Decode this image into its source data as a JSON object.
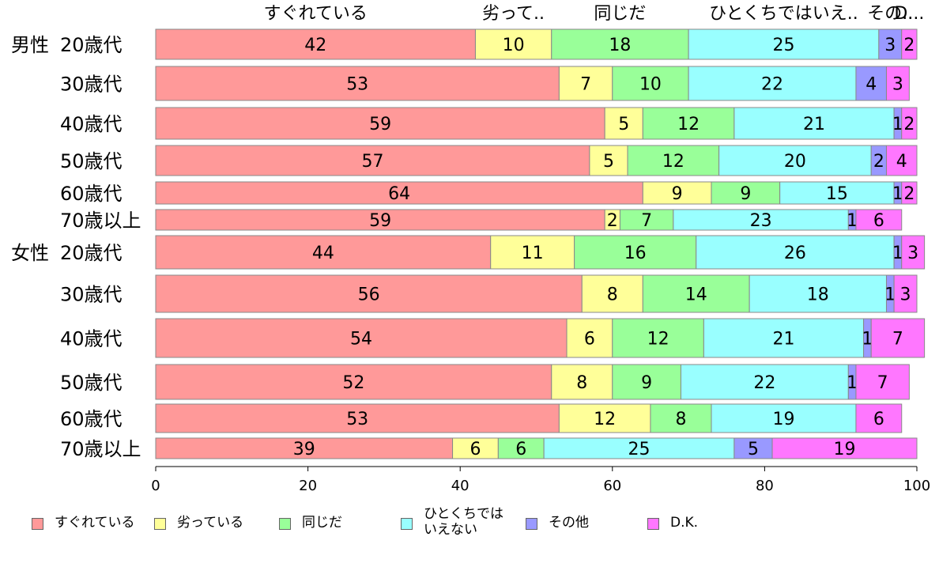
{
  "chart_data": {
    "type": "bar",
    "orientation": "horizontal",
    "stacked": true,
    "xlim": [
      0,
      100
    ],
    "xticks": [
      0,
      20,
      40,
      60,
      80,
      100
    ],
    "categories": [
      {
        "group": "男性",
        "label": "20歳代"
      },
      {
        "group": "",
        "label": "30歳代"
      },
      {
        "group": "",
        "label": "40歳代"
      },
      {
        "group": "",
        "label": "50歳代"
      },
      {
        "group": "",
        "label": "60歳代"
      },
      {
        "group": "",
        "label": "70歳以上"
      },
      {
        "group": "女性",
        "label": "20歳代"
      },
      {
        "group": "",
        "label": "30歳代"
      },
      {
        "group": "",
        "label": "40歳代"
      },
      {
        "group": "",
        "label": "50歳代"
      },
      {
        "group": "",
        "label": "60歳代"
      },
      {
        "group": "",
        "label": "70歳以上"
      }
    ],
    "series": [
      {
        "name": "すぐれている",
        "top_label": "すぐれている",
        "color": "#ff9999",
        "values": [
          42,
          53,
          59,
          57,
          64,
          59,
          44,
          56,
          54,
          52,
          53,
          39
        ]
      },
      {
        "name": "劣っている",
        "top_label": "劣って..",
        "color": "#ffff99",
        "values": [
          10,
          7,
          5,
          5,
          9,
          2,
          11,
          8,
          6,
          8,
          12,
          6
        ]
      },
      {
        "name": "同じだ",
        "top_label": "同じだ",
        "color": "#99ff99",
        "values": [
          18,
          10,
          12,
          12,
          9,
          7,
          16,
          14,
          12,
          9,
          8,
          6
        ]
      },
      {
        "name": "ひとくちでは\nいえない",
        "top_label": "ひとくちではいえ..",
        "color": "#99ffff",
        "values": [
          25,
          22,
          21,
          20,
          15,
          23,
          26,
          18,
          21,
          22,
          19,
          25
        ]
      },
      {
        "name": "その他",
        "top_label": "その..",
        "color": "#9999ff",
        "values": [
          3,
          4,
          1,
          2,
          1,
          1,
          1,
          1,
          1,
          1,
          0,
          5
        ]
      },
      {
        "name": "D.K.",
        "top_label": "D...",
        "color": "#ff77ff",
        "values": [
          2,
          3,
          2,
          4,
          2,
          6,
          3,
          3,
          7,
          7,
          6,
          19
        ]
      }
    ]
  }
}
